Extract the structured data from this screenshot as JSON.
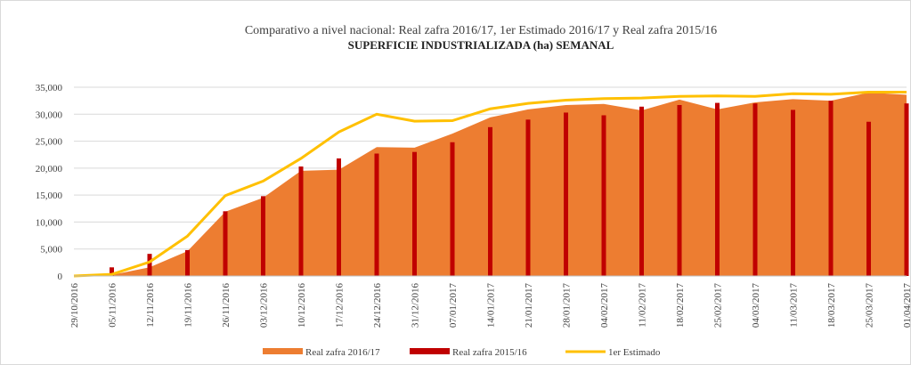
{
  "chart_data": {
    "type": "area_bar_line",
    "title": "Comparativo a nivel nacional: Real zafra 2016/17, 1er Estimado 2016/17 y Real zafra 2015/16",
    "subtitle": "SUPERFICIE INDUSTRIALIZADA (ha) SEMANAL",
    "categories": [
      "29/10/2016",
      "05/11/2016",
      "12/11/2016",
      "19/11/2016",
      "26/11/2016",
      "03/12/2016",
      "10/12/2016",
      "17/12/2016",
      "24/12/2016",
      "31/12/2016",
      "07/01/2017",
      "14/01/2017",
      "21/01/2017",
      "28/01/2017",
      "04/02/2017",
      "11/02/2017",
      "18/02/2017",
      "25/02/2017",
      "04/03/2017",
      "11/03/2017",
      "18/03/2017",
      "25/03/2017",
      "01/04/2017"
    ],
    "series": [
      {
        "name": "Real zafra 2016/17",
        "type": "area",
        "color": "#ed7d31",
        "values": [
          0,
          200,
          1600,
          4600,
          11900,
          14500,
          19500,
          19700,
          23900,
          23800,
          26400,
          29400,
          30900,
          31700,
          31900,
          30700,
          32700,
          30900,
          32200,
          32800,
          32500,
          34000,
          33600
        ]
      },
      {
        "name": "Real zafra 2015/16",
        "type": "bar",
        "color": "#c00000",
        "values": [
          0,
          1600,
          4100,
          4800,
          12000,
          14800,
          20300,
          21800,
          22700,
          23000,
          24800,
          27600,
          29000,
          30300,
          29800,
          31400,
          31700,
          32100,
          32000,
          30800,
          32500,
          28600,
          32000
        ]
      },
      {
        "name": "1er Estimado",
        "type": "line",
        "color": "#ffc000",
        "values": [
          0,
          300,
          2600,
          7400,
          14900,
          17600,
          21800,
          26700,
          30000,
          28700,
          28800,
          31000,
          32000,
          32600,
          32900,
          33000,
          33300,
          33400,
          33300,
          33800,
          33700,
          34100,
          34100
        ]
      }
    ],
    "ylim": [
      0,
      35000
    ],
    "yticks": [
      0,
      {
        "value": 5000,
        "label": "5,000"
      },
      {
        "value": 10000,
        "label": "10,000"
      },
      {
        "value": 15000,
        "label": "15,000"
      },
      {
        "value": 20000,
        "label": "20,000"
      },
      {
        "value": 25000,
        "label": "25,000"
      },
      {
        "value": 30000,
        "label": "30,000"
      },
      {
        "value": 35000,
        "label": "35,000"
      }
    ],
    "grid": true,
    "legend": "bottom"
  }
}
